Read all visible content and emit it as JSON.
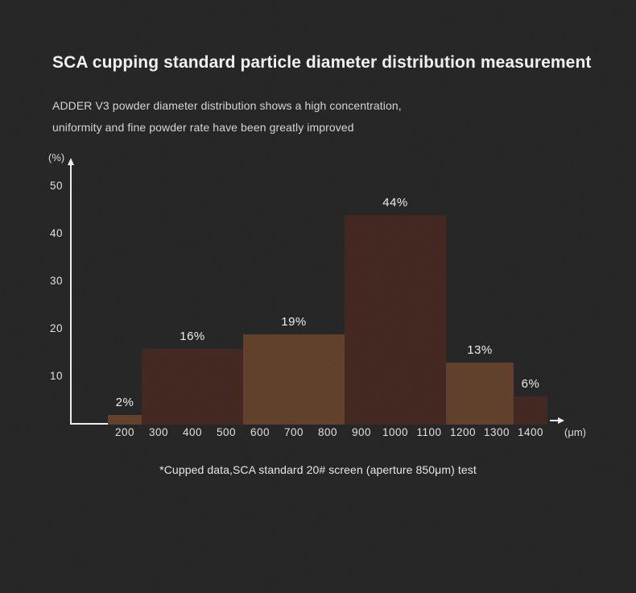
{
  "colors": {
    "background": "#232323",
    "bar_light_brown": "#5f3e29",
    "bar_dark_brown": "#40251e",
    "axis": "#f0f0f0",
    "title_text": "#f2f2f2",
    "subtitle_text": "#d6d6d6",
    "tick_text": "#e2e2e2"
  },
  "header": {
    "title": "SCA cupping standard particle diameter distribution measurement",
    "subtitle_line1": "ADDER V3 powder diameter distribution shows a high concentration,",
    "subtitle_line2": "uniformity and fine powder rate have been greatly improved"
  },
  "chart_data": {
    "type": "bar",
    "title": "SCA cupping standard particle diameter distribution measurement",
    "x_unit_label": "(μm)",
    "y_unit_label": "(%)",
    "x_ticks": [
      200,
      300,
      400,
      500,
      600,
      700,
      800,
      900,
      1000,
      1100,
      1200,
      1300,
      1400
    ],
    "y_ticks": [
      10,
      20,
      30,
      40,
      50
    ],
    "ylim": [
      0,
      55
    ],
    "grid": false,
    "legend": false,
    "bars": [
      {
        "percent": 2,
        "label": "2%",
        "covers_ticks": [
          200
        ],
        "color": "#5f3e29"
      },
      {
        "percent": 16,
        "label": "16%",
        "covers_ticks": [
          300,
          400,
          500
        ],
        "color": "#40251e"
      },
      {
        "percent": 19,
        "label": "19%",
        "covers_ticks": [
          600,
          700,
          800
        ],
        "color": "#5f3e29"
      },
      {
        "percent": 44,
        "label": "44%",
        "covers_ticks": [
          900,
          1000,
          1100
        ],
        "color": "#40251e"
      },
      {
        "percent": 13,
        "label": "13%",
        "covers_ticks": [
          1200,
          1300
        ],
        "color": "#5f3e29"
      },
      {
        "percent": 6,
        "label": "6%",
        "covers_ticks": [
          1400
        ],
        "color": "#40251e"
      }
    ]
  },
  "footer": {
    "note": "*Cupped data,SCA standard 20# screen (aperture 850μm) test"
  }
}
